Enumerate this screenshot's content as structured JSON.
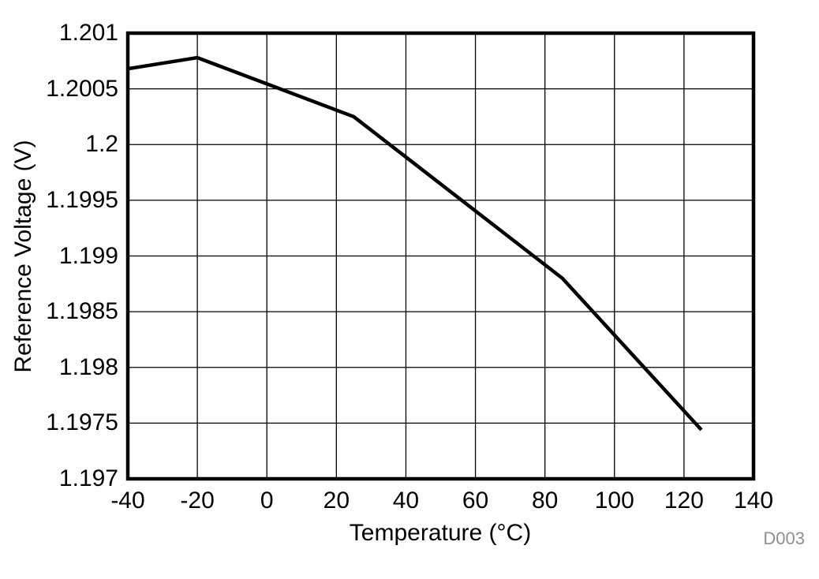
{
  "figure_id": "D003",
  "colors": {
    "line": "#000000",
    "grid": "#000000",
    "border": "#000000",
    "figure_id_text": "#8f8f8f",
    "background": "#ffffff"
  },
  "chart_data": {
    "type": "line",
    "title": "",
    "xlabel": "Temperature (°C)",
    "ylabel": "Reference Voltage (V)",
    "xlim": [
      -40,
      140
    ],
    "ylim": [
      1.197,
      1.201
    ],
    "xticks": [
      -40,
      -20,
      0,
      20,
      40,
      60,
      80,
      100,
      120,
      140
    ],
    "xtick_labels": [
      "-40",
      "-20",
      "0",
      "20",
      "40",
      "60",
      "80",
      "100",
      "120",
      "140"
    ],
    "yticks": [
      1.197,
      1.1975,
      1.198,
      1.1985,
      1.199,
      1.1995,
      1.2,
      1.2005,
      1.201
    ],
    "ytick_labels": [
      "1.197",
      "1.1975",
      "1.198",
      "1.1985",
      "1.199",
      "1.1995",
      "1.2",
      "1.2005",
      "1.201"
    ],
    "grid": true,
    "legend": false,
    "series": [
      {
        "name": "Reference Voltage",
        "color": "#000000",
        "x": [
          -40,
          -20,
          25,
          85,
          125
        ],
        "y": [
          1.20068,
          1.20078,
          1.20025,
          1.1988,
          1.19744
        ]
      }
    ]
  }
}
